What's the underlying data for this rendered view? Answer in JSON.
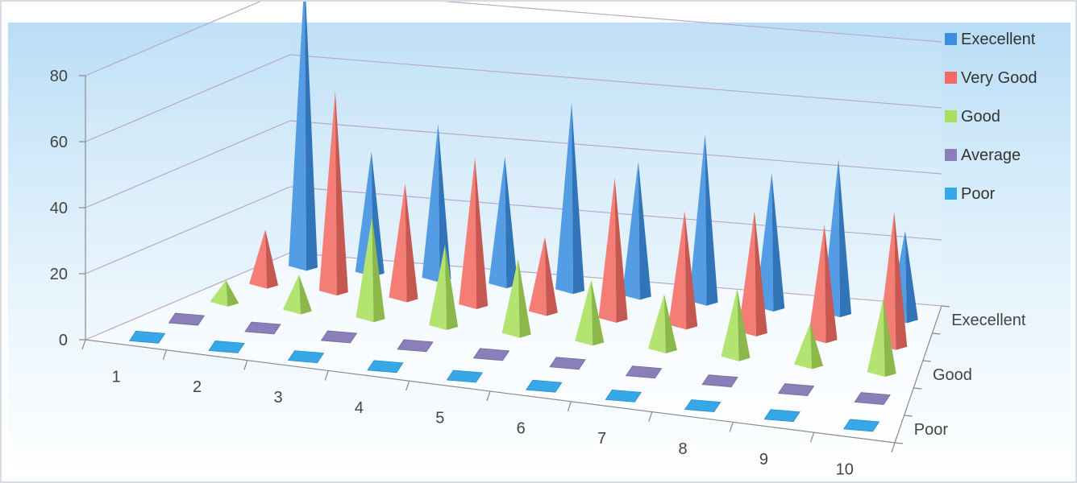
{
  "chart_data": {
    "type": "3d-pyramid-column",
    "title": "",
    "xlabel": "",
    "ylabel": "",
    "categories": [
      "1",
      "2",
      "3",
      "4",
      "5",
      "6",
      "7",
      "8",
      "9",
      "10"
    ],
    "series": [
      {
        "name": "Execellent",
        "color": "#3d8ee0",
        "values": [
          88,
          36,
          46,
          38,
          56,
          40,
          50,
          40,
          46,
          26
        ]
      },
      {
        "name": "Very Good",
        "color": "#f26b63",
        "values": [
          16,
          60,
          34,
          44,
          22,
          42,
          34,
          36,
          34,
          40
        ]
      },
      {
        "name": "Good",
        "color": "#a9df5c",
        "values": [
          6,
          10,
          30,
          24,
          22,
          18,
          16,
          20,
          12,
          22
        ]
      },
      {
        "name": "Average",
        "color": "#8a7fb8",
        "values": [
          0,
          0,
          0,
          0,
          0,
          0,
          0,
          0,
          0,
          0
        ]
      },
      {
        "name": "Poor",
        "color": "#36a8e8",
        "values": [
          0,
          0,
          0,
          0,
          0,
          0,
          0,
          0,
          0,
          0
        ]
      }
    ],
    "depth_axis_labels": [
      "Execellent",
      "Good",
      "Poor"
    ],
    "ylim": [
      0,
      80
    ],
    "yticks": [
      "0",
      "20",
      "40",
      "60",
      "80"
    ],
    "grid": true,
    "legend_position": "right",
    "background": "light-blue-gradient"
  }
}
